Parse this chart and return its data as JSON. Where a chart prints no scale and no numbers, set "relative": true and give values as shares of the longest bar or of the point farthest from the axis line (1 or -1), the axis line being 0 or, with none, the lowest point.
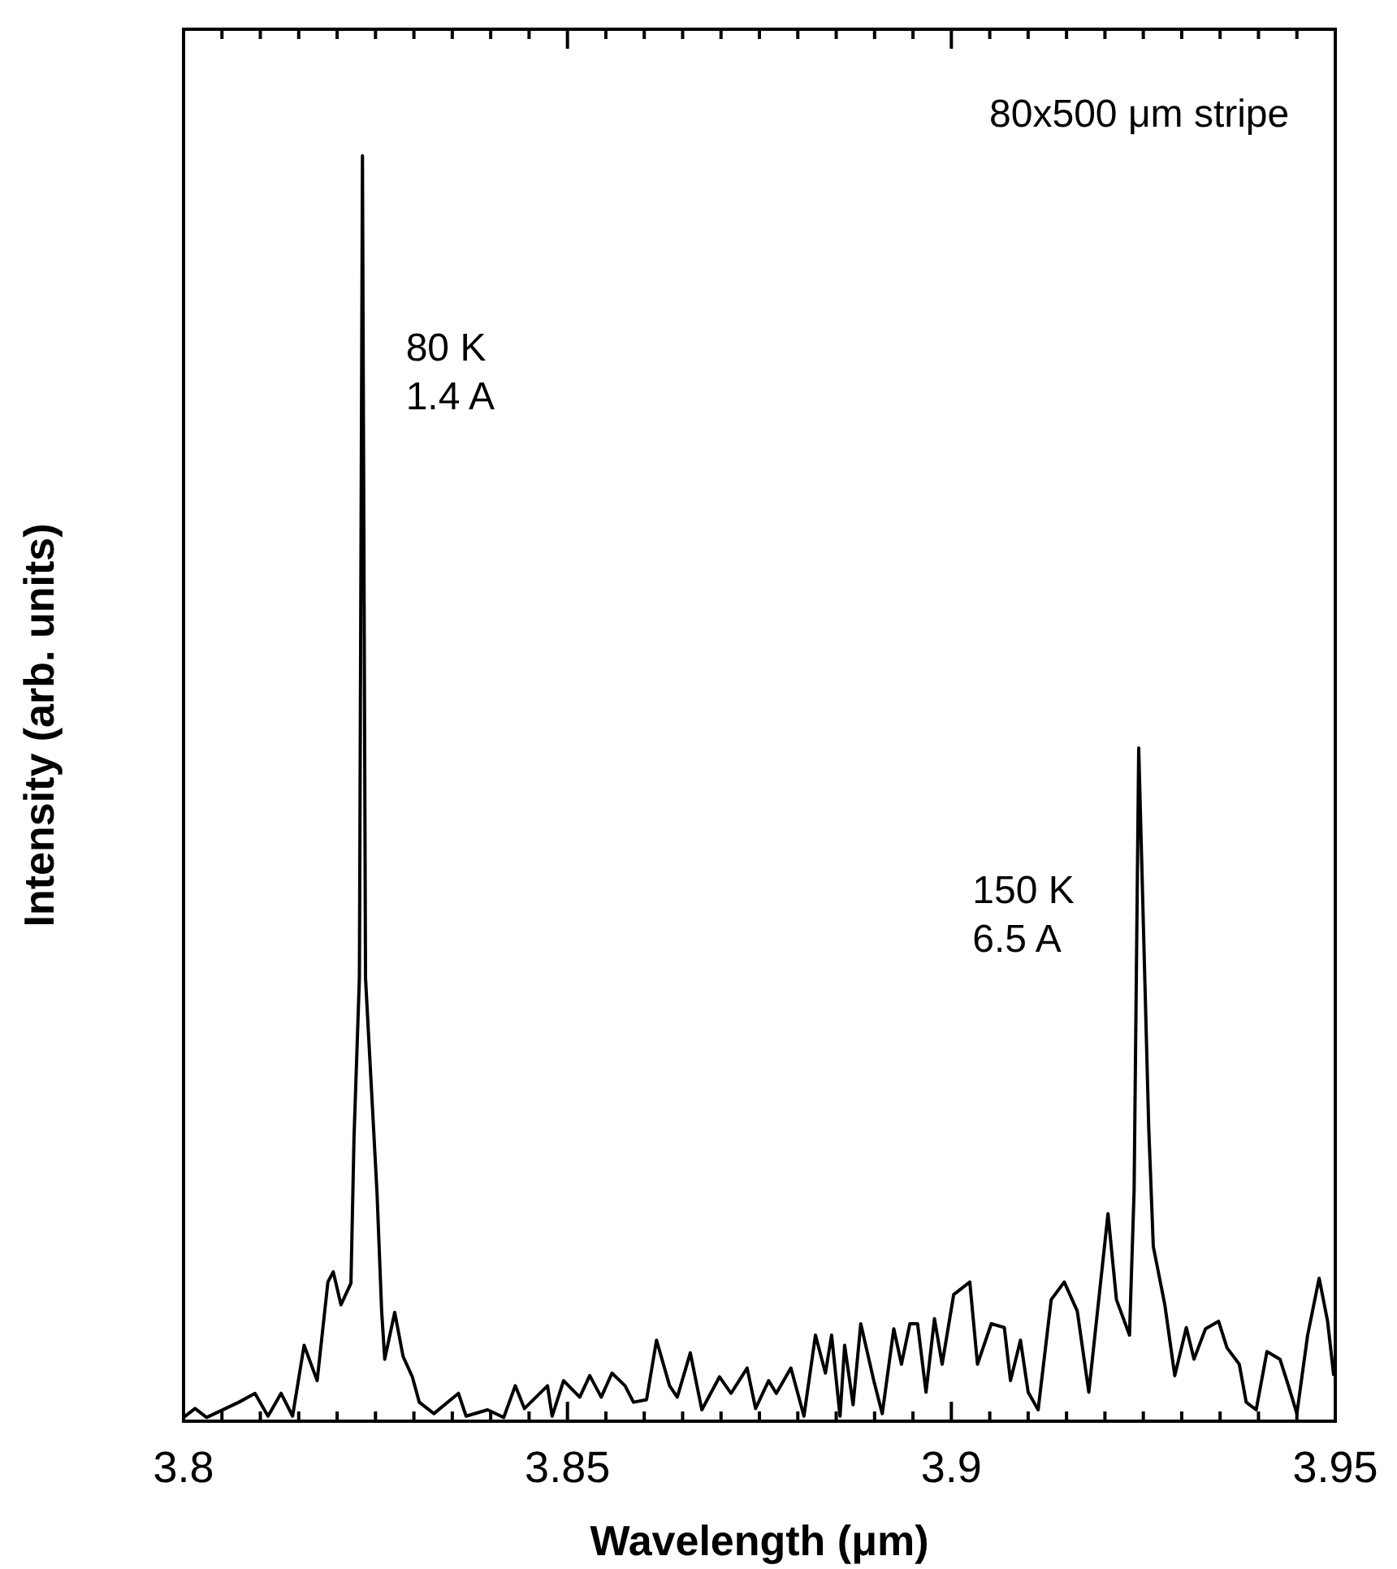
{
  "chart_data": {
    "type": "line",
    "xlabel": "Wavelength (μm)",
    "ylabel": "Intensity (arb. units)",
    "relative": true,
    "color": "#000000",
    "xlim": [
      3.8,
      3.95
    ],
    "xticks": [
      3.8,
      {
        "value": 3.805,
        "label": null
      },
      {
        "value": 3.81,
        "label": null
      },
      {
        "value": 3.815,
        "label": null
      },
      {
        "value": 3.82,
        "label": null
      },
      {
        "value": 3.825,
        "label": null
      },
      {
        "value": 3.83,
        "label": null
      },
      {
        "value": 3.835,
        "label": null
      },
      {
        "value": 3.84,
        "label": null
      },
      {
        "value": 3.845,
        "label": null
      },
      3.85,
      {
        "value": 3.855,
        "label": null
      },
      {
        "value": 3.86,
        "label": null
      },
      {
        "value": 3.865,
        "label": null
      },
      {
        "value": 3.87,
        "label": null
      },
      {
        "value": 3.875,
        "label": null
      },
      {
        "value": 3.88,
        "label": null
      },
      {
        "value": 3.885,
        "label": null
      },
      {
        "value": 3.89,
        "label": null
      },
      {
        "value": 3.895,
        "label": null
      },
      3.9,
      {
        "value": 3.905,
        "label": null
      },
      {
        "value": 3.91,
        "label": null
      },
      {
        "value": 3.915,
        "label": null
      },
      {
        "value": 3.92,
        "label": null
      },
      {
        "value": 3.925,
        "label": null
      },
      {
        "value": 3.93,
        "label": null
      },
      {
        "value": 3.935,
        "label": null
      },
      {
        "value": 3.94,
        "label": null
      },
      {
        "value": 3.945,
        "label": null
      },
      3.95
    ],
    "x": [
      3.8,
      3.8015,
      3.803,
      3.8072,
      3.8093,
      3.811,
      3.8127,
      3.8142,
      3.8157,
      3.8174,
      3.8188,
      3.8195,
      3.8205,
      3.8218,
      3.8222,
      3.8229,
      3.8233,
      3.8237,
      3.8252,
      3.8258,
      3.8262,
      3.8275,
      3.8286,
      3.8298,
      3.8307,
      3.8326,
      3.8358,
      3.8368,
      3.8396,
      3.8417,
      3.8432,
      3.8444,
      3.8474,
      3.848,
      3.8495,
      3.8516,
      3.8529,
      3.8544,
      3.8558,
      3.8575,
      3.8586,
      3.8603,
      3.8616,
      3.8633,
      3.8643,
      3.866,
      3.8675,
      3.8698,
      3.8713,
      3.8734,
      3.8745,
      3.8762,
      3.8772,
      3.8791,
      3.8808,
      3.8823,
      3.8836,
      3.8844,
      3.8855,
      3.8861,
      3.8872,
      3.8882,
      3.8899,
      3.891,
      3.8925,
      3.8935,
      3.8946,
      3.8956,
      3.8967,
      3.8978,
      3.8988,
      3.9003,
      3.9024,
      3.9034,
      3.9052,
      3.9069,
      3.9077,
      3.909,
      3.91,
      3.9113,
      3.913,
      3.9147,
      3.9164,
      3.9179,
      3.9204,
      3.9215,
      3.9232,
      3.9238,
      3.9244,
      3.9257,
      3.9263,
      3.9278,
      3.9291,
      3.9306,
      3.9316,
      3.9331,
      3.9348,
      3.9359,
      3.9375,
      3.9384,
      3.9397,
      3.9411,
      3.9428,
      3.9439,
      3.945,
      3.9464,
      3.9479,
      3.949,
      3.9498
    ],
    "values": [
      0.003,
      0.01,
      0.003,
      0.015,
      0.022,
      0.004,
      0.022,
      0.004,
      0.06,
      0.032,
      0.11,
      0.118,
      0.092,
      0.109,
      0.224,
      0.35,
      1,
      0.35,
      0.18,
      0.087,
      0.049,
      0.086,
      0.051,
      0.035,
      0.015,
      0.006,
      0.022,
      0.004,
      0.009,
      0.003,
      0.028,
      0.01,
      0.028,
      0.004,
      0.032,
      0.019,
      0.036,
      0.019,
      0.038,
      0.028,
      0.015,
      0.017,
      0.064,
      0.028,
      0.019,
      0.054,
      0.009,
      0.035,
      0.022,
      0.042,
      0.01,
      0.032,
      0.022,
      0.042,
      0.004,
      0.068,
      0.038,
      0.068,
      0.004,
      0.06,
      0.013,
      0.077,
      0.032,
      0.006,
      0.073,
      0.045,
      0.077,
      0.077,
      0.023,
      0.081,
      0.045,
      0.1,
      0.11,
      0.045,
      0.077,
      0.074,
      0.032,
      0.064,
      0.023,
      0.009,
      0.096,
      0.11,
      0.087,
      0.023,
      0.164,
      0.096,
      0.068,
      0.182,
      0.532,
      0.233,
      0.138,
      0.092,
      0.036,
      0.074,
      0.049,
      0.073,
      0.079,
      0.058,
      0.045,
      0.015,
      0.009,
      0.055,
      0.049,
      0.028,
      0.006,
      0.068,
      0.113,
      0.079,
      0.036
    ],
    "annotations": [
      "80x500 μm stripe",
      "80 K\n1.4 A",
      "150 K\n6.5 A"
    ]
  }
}
